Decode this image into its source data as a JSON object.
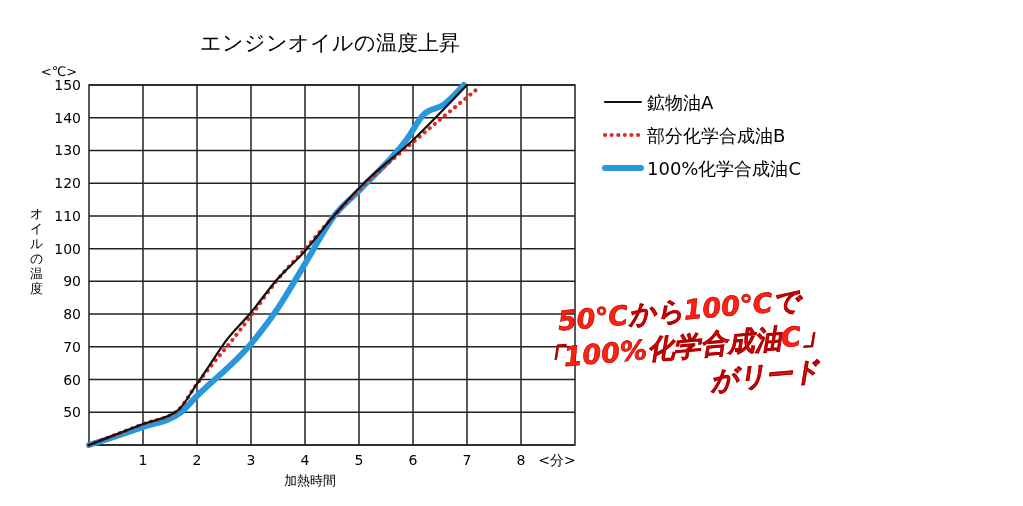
{
  "chart_data": {
    "type": "line",
    "title": "エンジンオイルの温度上昇",
    "xlabel": "加熱時間",
    "ylabel": "オイルの温度",
    "xlim": [
      0,
      9
    ],
    "xticks": [
      1,
      2,
      3,
      4,
      5,
      6,
      7,
      8
    ],
    "ylim": [
      40,
      150
    ],
    "yticks": [
      {
        "value": 40,
        "label": null
      },
      50,
      60,
      70,
      80,
      90,
      100,
      110,
      120,
      130,
      140,
      150
    ],
    "grid": true,
    "legend": "right",
    "annotations": [
      "<℃>",
      "<分>",
      "50℃から100℃で",
      "「100%化学合成油C」",
      "がリード"
    ],
    "series": [
      {
        "name": "鉱物油A",
        "color": "#111111",
        "line_style": "solid",
        "x": [
          0,
          1,
          1.64,
          2,
          2.31,
          2.5,
          3,
          3.49,
          3.98,
          4.48,
          5.03,
          6.02,
          7
        ],
        "values": [
          40,
          46.4,
          50.5,
          58.7,
          66.3,
          71,
          80.5,
          90.7,
          98.9,
          109,
          119,
          133.5,
          150
        ]
      },
      {
        "name": "部分化学合成油B",
        "color": "#e02a1e",
        "line_style": "dotted",
        "x": [
          0,
          1,
          1.64,
          2,
          2.3,
          2.62,
          3,
          3.49,
          3.98,
          4.48,
          5.03,
          6,
          7.19
        ],
        "values": [
          40,
          46.4,
          50.5,
          58.7,
          65,
          71.4,
          79.5,
          90.5,
          99.5,
          109,
          118.5,
          132.5,
          148.8
        ]
      },
      {
        "name": "100%化学合成油C",
        "color": "#2a96dc",
        "line_style": "solid",
        "x": [
          0,
          1,
          1.7,
          2,
          3,
          3.49,
          3.98,
          4.54,
          5.03,
          5.89,
          6.2,
          6.57,
          6.94
        ],
        "values": [
          40,
          45.5,
          50,
          55,
          70.9,
          81.6,
          94.8,
          110,
          118.2,
          133.5,
          141,
          144,
          150
        ]
      }
    ]
  }
}
